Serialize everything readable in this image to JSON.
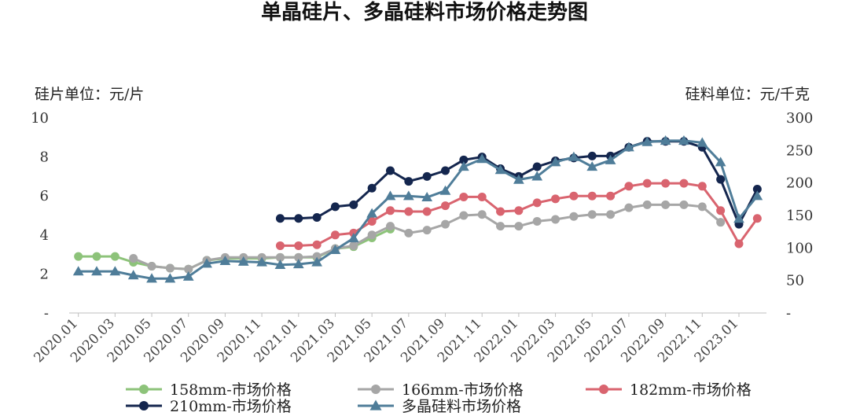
{
  "chart_data": {
    "type": "line",
    "title": "单晶硅片、多晶硅料市场价格走势图",
    "left_unit_label": "硅片单位：元/片",
    "right_unit_label": "硅料单位：元/千克",
    "y_left": {
      "range": [
        0,
        10
      ],
      "tick_labels": [
        "-",
        "2",
        "4",
        "6",
        "8",
        "10"
      ]
    },
    "y_right": {
      "range": [
        0,
        300
      ],
      "tick_labels": [
        "-",
        "50",
        "100",
        "150",
        "200",
        "250",
        "300"
      ]
    },
    "grid": false,
    "legend_position": "bottom",
    "x_tick_labels": [
      "2020.01",
      "2020.03",
      "2020.05",
      "2020.07",
      "2020.09",
      "2020.11",
      "2021.01",
      "2021.03",
      "2021.05",
      "2021.07",
      "2021.09",
      "2021.11",
      "2022.01",
      "2022.03",
      "2022.05",
      "2022.07",
      "2022.09",
      "2022.11",
      "2023.01"
    ],
    "x": [
      "2020.01",
      "2020.02",
      "2020.03",
      "2020.04",
      "2020.05",
      "2020.06",
      "2020.07",
      "2020.08",
      "2020.09",
      "2020.10",
      "2020.11",
      "2020.12",
      "2021.01",
      "2021.02",
      "2021.03",
      "2021.04",
      "2021.05",
      "2021.06",
      "2021.07",
      "2021.08",
      "2021.09",
      "2021.10",
      "2021.11",
      "2021.12",
      "2022.01",
      "2022.02",
      "2022.03",
      "2022.04",
      "2022.05",
      "2022.06",
      "2022.07",
      "2022.08",
      "2022.09",
      "2022.10",
      "2022.11",
      "2022.12",
      "2023.01",
      "2023.02"
    ],
    "series": [
      {
        "name": "158mm-市场价格",
        "axis": "left",
        "color": "#8dc37a",
        "marker": "circle",
        "values": [
          2.9,
          2.9,
          2.9,
          2.6,
          2.4,
          2.3,
          2.25,
          2.7,
          2.8,
          2.8,
          2.8,
          2.85,
          2.85,
          2.85,
          3.3,
          3.4,
          3.85,
          4.3,
          null,
          null,
          null,
          null,
          null,
          null,
          null,
          null,
          null,
          null,
          null,
          null,
          null,
          null,
          null,
          null,
          null,
          null,
          null,
          null
        ]
      },
      {
        "name": "166mm-市场价格",
        "axis": "left",
        "color": "#a6a6a6",
        "marker": "circle",
        "values": [
          null,
          null,
          null,
          2.8,
          2.4,
          2.3,
          2.25,
          2.7,
          2.85,
          2.85,
          2.85,
          2.85,
          2.85,
          2.9,
          3.3,
          3.45,
          4.0,
          4.45,
          4.1,
          4.25,
          4.55,
          5.0,
          5.05,
          4.45,
          4.45,
          4.7,
          4.8,
          4.95,
          5.05,
          5.05,
          5.4,
          5.55,
          5.55,
          5.55,
          5.45,
          4.65,
          null,
          null
        ]
      },
      {
        "name": "182mm-市场价格",
        "axis": "left",
        "color": "#d9646f",
        "marker": "circle",
        "values": [
          null,
          null,
          null,
          null,
          null,
          null,
          null,
          null,
          null,
          null,
          null,
          3.45,
          3.45,
          3.5,
          4.0,
          4.1,
          4.7,
          5.25,
          5.2,
          5.2,
          5.5,
          5.95,
          5.95,
          5.2,
          5.25,
          5.65,
          5.85,
          6.0,
          6.0,
          6.0,
          6.5,
          6.65,
          6.65,
          6.65,
          6.5,
          5.25,
          3.55,
          4.85
        ]
      },
      {
        "name": "210mm-市场价格",
        "axis": "left",
        "color": "#14264e",
        "marker": "circle",
        "values": [
          null,
          null,
          null,
          null,
          null,
          null,
          null,
          null,
          null,
          null,
          null,
          4.85,
          4.85,
          4.9,
          5.45,
          5.55,
          6.4,
          7.3,
          6.75,
          7.0,
          7.3,
          7.85,
          8.0,
          7.4,
          7.0,
          7.5,
          7.8,
          7.95,
          8.05,
          8.05,
          8.5,
          8.8,
          8.8,
          8.8,
          8.5,
          6.85,
          4.55,
          6.35
        ]
      },
      {
        "name": "多晶硅料市场价格",
        "axis": "right",
        "color": "#4f7d99",
        "marker": "triangle",
        "values": [
          64,
          64,
          64,
          58,
          53,
          53,
          56,
          76,
          80,
          79,
          78,
          74,
          75,
          78,
          97,
          115,
          153,
          180,
          180,
          178,
          188,
          225,
          237,
          220,
          205,
          210,
          232,
          240,
          225,
          235,
          255,
          263,
          265,
          265,
          262,
          232,
          145,
          180
        ]
      }
    ]
  }
}
